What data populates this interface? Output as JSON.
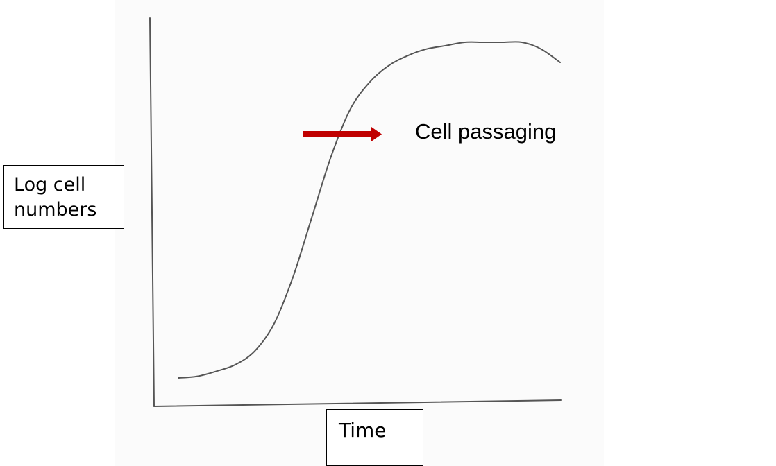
{
  "chart_data": {
    "type": "line",
    "title": "",
    "xlabel": "Time",
    "ylabel": "Log cell numbers",
    "ylabel_lines": [
      "Log cell",
      "numbers"
    ],
    "grid": false,
    "legend": "none",
    "series": [
      {
        "x": [
          0.0,
          0.05,
          0.1,
          0.15,
          0.2,
          0.25,
          0.3,
          0.35,
          0.4,
          0.45,
          0.5,
          0.55,
          0.6,
          0.65,
          0.7,
          0.75,
          0.8,
          0.85,
          0.9,
          0.95,
          1.0
        ],
        "y": [
          0.0,
          0.005,
          0.02,
          0.04,
          0.08,
          0.16,
          0.3,
          0.48,
          0.66,
          0.8,
          0.88,
          0.93,
          0.96,
          0.98,
          0.99,
          1.0,
          1.0,
          1.0,
          1.0,
          0.98,
          0.94
        ],
        "color": "#555555"
      }
    ],
    "annotations": [
      {
        "text": "Cell passaging",
        "arrow_color": "#c00000"
      }
    ]
  }
}
